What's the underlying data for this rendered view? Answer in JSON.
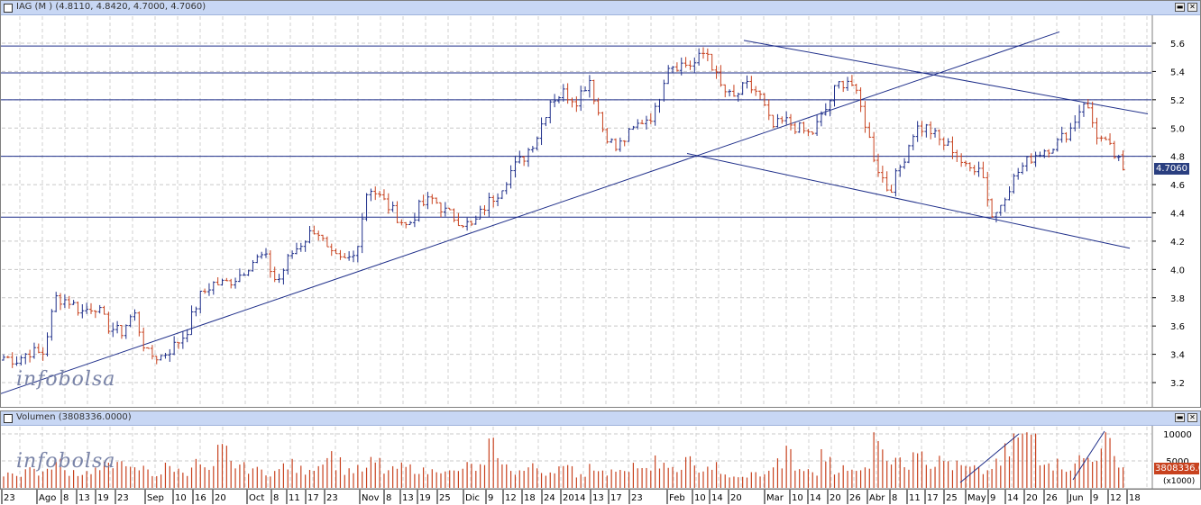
{
  "price_panel": {
    "title": "IAG (M ) (4.8110, 4.8420, 4.7000, 4.7060)",
    "last_price_label": "4.7060",
    "y_ticks": [
      "5.6",
      "5.4",
      "5.2",
      "5.0",
      "4.8",
      "4.6",
      "4.4",
      "4.2",
      "4.0",
      "3.8",
      "3.6",
      "3.4",
      "3.2"
    ],
    "watermark": "infobolsa"
  },
  "volume_panel": {
    "title": "Volumen (3808336.0000)",
    "y_ticks": [
      "10000",
      "5000"
    ],
    "unit_label": "(x1000)",
    "last_volume_label": "3808336.0",
    "watermark": "infobolsa"
  },
  "x_axis_labels": [
    "23",
    "Ago",
    "8",
    "13",
    "19",
    "23",
    "Sep",
    "10",
    "16",
    "20",
    "Oct",
    "8",
    "11",
    "17",
    "23",
    "Nov",
    "8",
    "13",
    "19",
    "25",
    "Dic",
    "9",
    "12",
    "18",
    "24",
    "2014",
    "13",
    "17",
    "23",
    "Feb",
    "10",
    "14",
    "20",
    "Mar",
    "10",
    "14",
    "20",
    "26",
    "Abr",
    "8",
    "11",
    "17",
    "25",
    "May",
    "9",
    "14",
    "20",
    "26",
    "Jun",
    "9",
    "12",
    "18"
  ],
  "chart_data": {
    "type": "bar",
    "subtype": "ohlc",
    "title": "IAG (M ) (4.8110, 4.8420, 4.7000, 4.7060)",
    "ylim": [
      3.05,
      5.72
    ],
    "grid": true,
    "colors": {
      "up": "#1f2f8a",
      "down": "#c8421f",
      "line": "#1f2f8a",
      "volume": "#c8421f"
    },
    "last": {
      "open": 4.811,
      "high": 4.842,
      "low": 4.7,
      "close": 4.706
    },
    "horizontal_levels": [
      5.58,
      5.39,
      5.2,
      4.8,
      4.37
    ],
    "ohlc_close_anchors": [
      3.38,
      3.36,
      3.42,
      3.4,
      3.8,
      3.78,
      3.7,
      3.75,
      3.6,
      3.55,
      3.7,
      3.4,
      3.38,
      3.45,
      3.55,
      3.8,
      3.9,
      3.9,
      3.95,
      4.05,
      4.1,
      3.9,
      4.1,
      4.2,
      4.3,
      4.1,
      4.05,
      4.1,
      4.6,
      4.5,
      4.4,
      4.3,
      4.45,
      4.5,
      4.4,
      4.35,
      4.3,
      4.45,
      4.55,
      4.7,
      4.8,
      4.95,
      5.2,
      5.25,
      5.2,
      5.35,
      5.0,
      4.85,
      4.95,
      5.05,
      5.1,
      5.45,
      5.45,
      5.45,
      5.55,
      5.3,
      5.2,
      5.3,
      5.25,
      5.0,
      5.05,
      5.0,
      4.95,
      5.1,
      5.3,
      5.35,
      5.1,
      4.75,
      4.55,
      4.75,
      5.0,
      5.0,
      4.9,
      4.85,
      4.7,
      4.75,
      4.35,
      4.55,
      4.7,
      4.8,
      4.85,
      4.9,
      5.0,
      5.2,
      4.95,
      4.85,
      4.706
    ],
    "volume_anchors": [
      3000,
      2600,
      3500,
      2800,
      4500,
      3100,
      2800,
      3300,
      3800,
      6500,
      3200,
      3500,
      2600,
      3800,
      3100,
      4400,
      3200,
      6600,
      4300,
      3700,
      3100,
      3000,
      4200,
      3300,
      4000,
      6100,
      4600,
      3300,
      3300,
      4600,
      3100,
      3700,
      3600,
      3000,
      3800,
      2800,
      3900,
      3700,
      7300,
      3800,
      3100,
      3700,
      3000,
      3800,
      3400,
      2600,
      4200,
      2700,
      3800,
      4200,
      3100,
      4700,
      3000,
      4700,
      3600,
      3900,
      2300,
      1800,
      2500,
      2700,
      4400,
      6200,
      3400,
      2900,
      5800,
      3500,
      3000,
      4400,
      10000,
      5500,
      4400,
      8300,
      4800,
      4900,
      4000,
      3500,
      3000,
      4200,
      6500,
      9000,
      10000,
      5600,
      4400,
      3900,
      5500,
      6200,
      8400,
      3808
    ],
    "trendlines": [
      {
        "from": [
          0,
          3.12
        ],
        "to": [
          1175,
          5.68
        ]
      },
      {
        "from": [
          825,
          5.62
        ],
        "to": [
          1273,
          5.1
        ]
      },
      {
        "from": [
          762,
          4.82
        ],
        "to": [
          1253,
          4.15
        ]
      }
    ],
    "volume_trendlines": [
      {
        "from": [
          1065,
          1000
        ],
        "to": [
          1130,
          10000
        ]
      },
      {
        "from": [
          1190,
          1500
        ],
        "to": [
          1225,
          10500
        ]
      }
    ]
  }
}
